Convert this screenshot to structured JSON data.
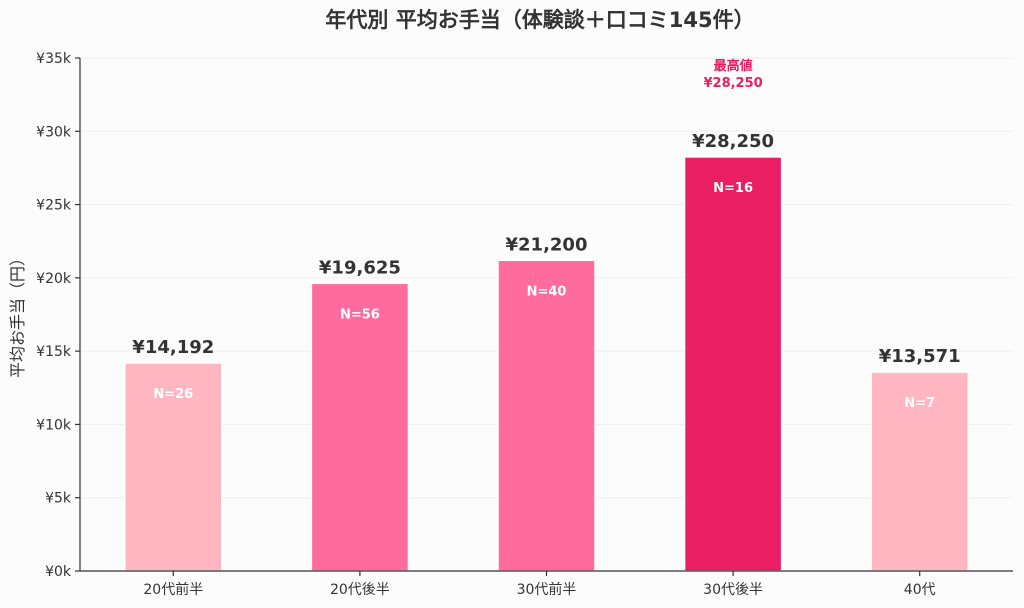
{
  "chart_data": {
    "type": "bar",
    "title": "年代別 平均お手当（体験談＋口コミ145件）",
    "ylabel": "平均お手当（円）",
    "xlabel": "",
    "categories": [
      "20代前半",
      "20代後半",
      "30代前半",
      "30代後半",
      "40代"
    ],
    "values": [
      14192,
      19625,
      21200,
      28250,
      13571
    ],
    "value_labels": [
      "¥14,192",
      "¥19,625",
      "¥21,200",
      "¥28,250",
      "¥13,571"
    ],
    "n_labels": [
      "N=26",
      "N=56",
      "N=40",
      "N=16",
      "N=7"
    ],
    "colors": [
      "#ffb6c1",
      "#ff6b9d",
      "#ff6b9d",
      "#e91e63",
      "#ffb6c1"
    ],
    "ylim": [
      0,
      35000
    ],
    "yticks": [
      0,
      5000,
      10000,
      15000,
      20000,
      25000,
      30000,
      35000
    ],
    "ytick_labels": [
      "¥0k",
      "¥5k",
      "¥10k",
      "¥15k",
      "¥20k",
      "¥25k",
      "¥30k",
      "¥35k"
    ],
    "grid": true,
    "annotation": {
      "category_index": 3,
      "line1": "最高値",
      "line2": "¥28,250",
      "color": "#e91e63"
    }
  }
}
